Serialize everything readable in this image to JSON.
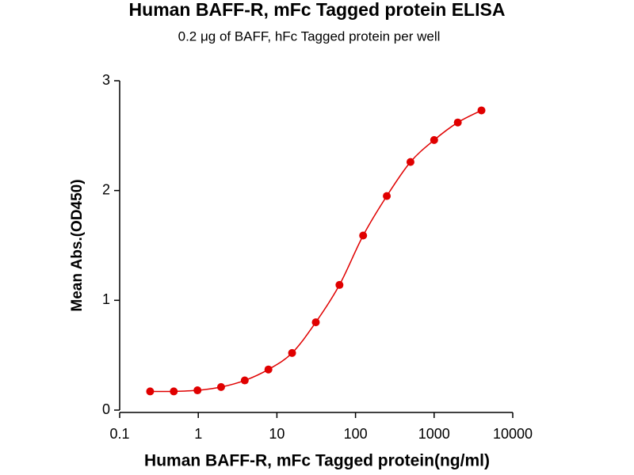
{
  "chart_data": {
    "type": "line",
    "title": "Human BAFF-R, mFc Tagged protein ELISA",
    "subtitle": "0.2 μg of BAFF, hFc Tagged protein per well",
    "x_label": "Human BAFF-R, mFc Tagged protein(ng/ml)",
    "y_label": "Mean Abs.(OD450)",
    "x_scale": "log",
    "x": [
      0.244,
      0.488,
      0.977,
      1.95,
      3.9,
      7.8,
      15.6,
      31.25,
      62.5,
      125,
      250,
      500,
      1000,
      2000,
      4000
    ],
    "series": [
      {
        "color": "#e00000",
        "values": [
          0.17,
          0.17,
          0.18,
          0.21,
          0.27,
          0.37,
          0.52,
          0.8,
          1.14,
          1.59,
          1.95,
          2.26,
          2.46,
          2.62,
          2.73
        ]
      }
    ],
    "xlim": [
      0.1,
      10000
    ],
    "xticks": [
      0.1,
      1,
      10,
      100,
      1000,
      10000
    ],
    "ylim": [
      0,
      3
    ],
    "yticks": [
      0,
      1,
      2,
      3
    ],
    "grid": false
  }
}
